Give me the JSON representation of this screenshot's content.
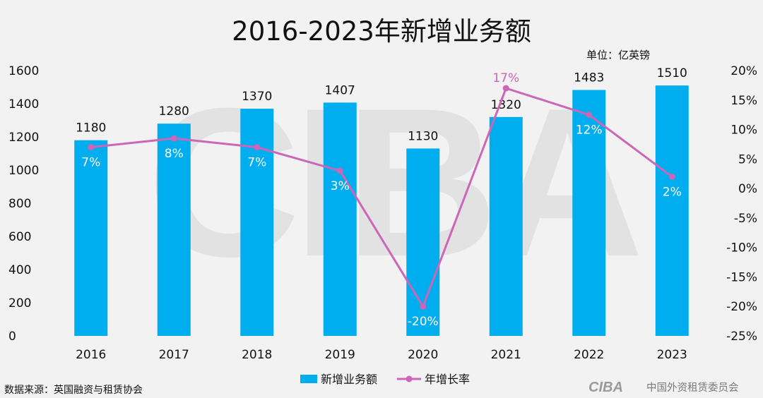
{
  "chart_data": {
    "type": "bar",
    "title": "2016-2023年新增业务额",
    "unit_label": "单位：亿英镑",
    "source": "数据来源：英国融资与租赁协会",
    "watermark": "CIBA",
    "footer_logo": {
      "mark": "CIBA",
      "org": "中国外资租赁委员会"
    },
    "categories": [
      "2016",
      "2017",
      "2018",
      "2019",
      "2020",
      "2021",
      "2022",
      "2023"
    ],
    "series": [
      {
        "name": "新增业务额",
        "kind": "bar",
        "axis": "left",
        "color": "#00adef",
        "values": [
          1180,
          1280,
          1370,
          1407,
          1130,
          1320,
          1483,
          1510
        ],
        "labels": [
          "1180",
          "1280",
          "1370",
          "1407",
          "1130",
          "1320",
          "1483",
          "1510"
        ]
      },
      {
        "name": "年增长率",
        "kind": "line",
        "axis": "right",
        "color": "#cc66b8",
        "values": [
          7,
          8.5,
          7,
          3,
          -20,
          17,
          12.5,
          2
        ],
        "labels": [
          "7%",
          "8%",
          "7%",
          "3%",
          "-20%",
          "17%",
          "12%",
          "2%"
        ]
      }
    ],
    "y_left": {
      "min": 0,
      "max": 1600,
      "ticks": [
        "0",
        "200",
        "400",
        "600",
        "800",
        "1000",
        "1200",
        "1400",
        "1600"
      ]
    },
    "y_right": {
      "min": -25,
      "max": 20,
      "ticks": [
        "-25%",
        "-20%",
        "-15%",
        "-10%",
        "-5%",
        "0%",
        "5%",
        "10%",
        "15%",
        "20%"
      ]
    },
    "grid": false,
    "legend_position": "bottom"
  }
}
